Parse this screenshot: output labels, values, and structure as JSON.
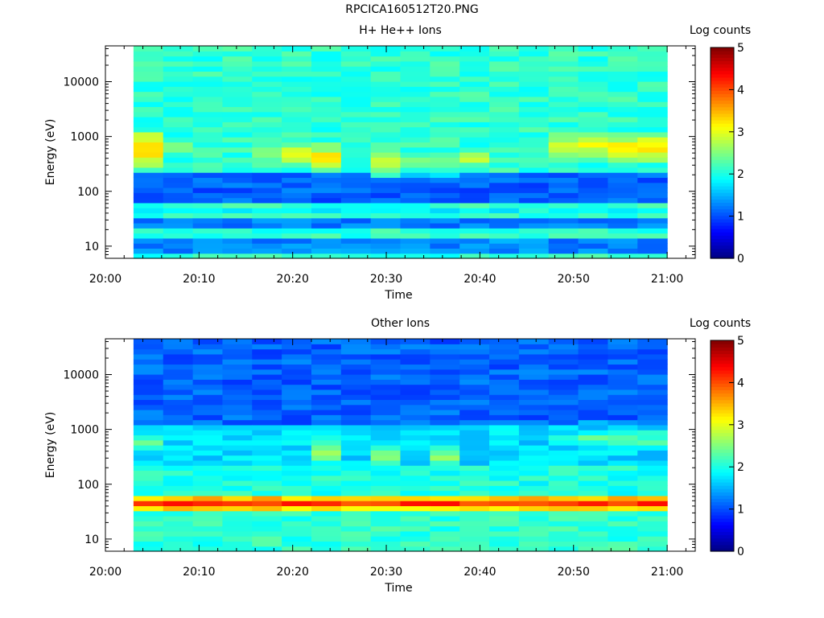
{
  "figure_title": "RPCICA160512T20.PNG",
  "chart_data": [
    {
      "type": "heatmap",
      "title": "H+ He++ Ions",
      "xlabel": "Time",
      "ylabel": "Energy (eV)",
      "x_ticks": [
        "20:00",
        "20:10",
        "20:20",
        "20:30",
        "20:40",
        "20:50",
        "21:00"
      ],
      "y_ticks": [
        "10",
        "100",
        "1000",
        "10000"
      ],
      "y_scale": "log",
      "ylim": [
        6,
        45000
      ],
      "x_range": [
        "20:00",
        "21:03"
      ],
      "data_time_range": [
        "20:03",
        "21:00"
      ],
      "colorbar": {
        "label": "Log counts",
        "ticks": [
          "0",
          "1",
          "2",
          "3",
          "4",
          "5"
        ],
        "range": [
          0,
          5
        ]
      },
      "time_columns": 18,
      "energy_bins": 42,
      "baseline_log_counts": 2.1,
      "energy_bands": [
        {
          "energy_ev": [
            8,
            14
          ],
          "log_counts": 1.3
        },
        {
          "energy_ev": [
            20,
            35
          ],
          "log_counts": 1.2
        },
        {
          "energy_ev": [
            40,
            55
          ],
          "log_counts": 1.9
        },
        {
          "energy_ev": [
            60,
            200
          ],
          "log_counts": 1.1
        }
      ],
      "column_peaks": [
        {
          "column": 0,
          "energy_ev": 600,
          "log_counts": 3.5
        },
        {
          "column": 1,
          "energy_ev": 700,
          "log_counts": 2.6
        },
        {
          "column": 4,
          "energy_ev": 500,
          "log_counts": 2.8
        },
        {
          "column": 5,
          "energy_ev": 470,
          "log_counts": 3.0
        },
        {
          "column": 6,
          "energy_ev": 420,
          "log_counts": 3.2
        },
        {
          "column": 8,
          "energy_ev": 330,
          "log_counts": 2.9
        },
        {
          "column": 9,
          "energy_ev": 360,
          "log_counts": 2.6
        },
        {
          "column": 10,
          "energy_ev": 350,
          "log_counts": 2.7
        },
        {
          "column": 11,
          "energy_ev": 400,
          "log_counts": 2.8
        },
        {
          "column": 14,
          "energy_ev": 660,
          "log_counts": 3.0
        },
        {
          "column": 15,
          "energy_ev": 680,
          "log_counts": 3.1
        },
        {
          "column": 16,
          "energy_ev": 650,
          "log_counts": 3.2
        },
        {
          "column": 17,
          "energy_ev": 620,
          "log_counts": 3.3
        }
      ]
    },
    {
      "type": "heatmap",
      "title": "Other Ions",
      "xlabel": "Time",
      "ylabel": "Energy (eV)",
      "x_ticks": [
        "20:00",
        "20:10",
        "20:20",
        "20:30",
        "20:40",
        "20:50",
        "21:00"
      ],
      "y_ticks": [
        "10",
        "100",
        "1000",
        "10000"
      ],
      "y_scale": "log",
      "ylim": [
        6,
        45000
      ],
      "x_range": [
        "20:00",
        "21:03"
      ],
      "data_time_range": [
        "20:03",
        "21:00"
      ],
      "colorbar": {
        "label": "Log counts",
        "ticks": [
          "0",
          "1",
          "2",
          "3",
          "4",
          "5"
        ],
        "range": [
          0,
          5
        ]
      },
      "time_columns": 18,
      "energy_bins": 42,
      "baseline_log_counts": 1.1,
      "energy_bands": [
        {
          "energy_ev": [
            6,
            32
          ],
          "log_counts": 2.1
        },
        {
          "energy_ev": [
            32,
            38
          ],
          "log_counts": 3.3
        },
        {
          "energy_ev": [
            38,
            48
          ],
          "log_counts": 4.1
        },
        {
          "energy_ev": [
            48,
            60
          ],
          "log_counts": 3.4
        },
        {
          "energy_ev": [
            60,
            200
          ],
          "log_counts": 2.0
        },
        {
          "energy_ev": [
            200,
            1200
          ],
          "log_counts": 1.7
        }
      ],
      "column_peaks": [
        {
          "column": 0,
          "energy_ev": 600,
          "log_counts": 2.4
        },
        {
          "column": 6,
          "energy_ev": 400,
          "log_counts": 2.6
        },
        {
          "column": 8,
          "energy_ev": 330,
          "log_counts": 2.5
        },
        {
          "column": 10,
          "energy_ev": 330,
          "log_counts": 2.6
        },
        {
          "column": 14,
          "energy_ev": 700,
          "log_counts": 2.2
        },
        {
          "column": 15,
          "energy_ev": 700,
          "log_counts": 2.3
        },
        {
          "column": 16,
          "energy_ev": 700,
          "log_counts": 2.4
        },
        {
          "column": 17,
          "energy_ev": 650,
          "log_counts": 2.4
        }
      ]
    }
  ]
}
